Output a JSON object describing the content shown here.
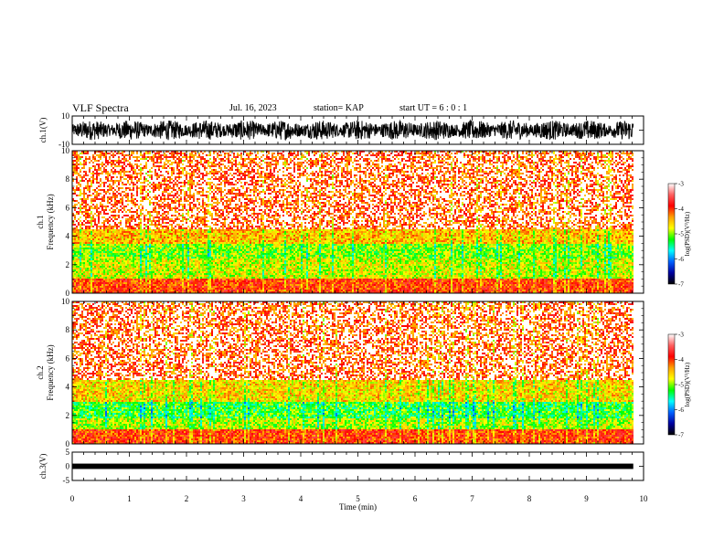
{
  "header": {
    "title": "VLF Spectra",
    "date": "Jul. 16, 2023",
    "station": "station= KAP",
    "start_ut": "start UT = 6 : 0 : 1"
  },
  "chart_data": [
    {
      "type": "line",
      "id": "ch1-waveform",
      "ylabel": "ch.1(V)",
      "ylim": [
        -10,
        10
      ],
      "ytick_labels": [
        "10",
        "-10"
      ],
      "xlim": [
        0,
        10
      ],
      "data_extent_x": [
        0,
        9.82
      ],
      "y_range_observed": [
        -7,
        7
      ]
    },
    {
      "type": "heatmap",
      "id": "ch1-spectrogram",
      "ylabel": "ch.1 Frequency (kHz)",
      "ylim": [
        0,
        10
      ],
      "yticks": [
        0,
        2,
        4,
        6,
        8,
        10
      ],
      "xlim": [
        0,
        10
      ],
      "data_extent_x": [
        0,
        9.82
      ],
      "colorbar": {
        "label": "log(PSD)(V²/Hz)",
        "range": [
          -7,
          -3
        ],
        "ticks": [
          -3,
          -4,
          -5,
          -6,
          -7
        ],
        "tick_labels": [
          "-3",
          "-4",
          "-5",
          "-6",
          "-7"
        ],
        "colors": [
          "#ffffff",
          "#ff6060",
          "#ff0000",
          "#ffa000",
          "#ffff00",
          "#00ff00",
          "#00ffff",
          "#0060ff",
          "#0000a0",
          "#000000"
        ]
      },
      "bands": [
        {
          "freq_khz": [
            4.5,
            10
          ],
          "level": -4.1
        },
        {
          "freq_khz": [
            3.5,
            4.5
          ],
          "level": -4.5
        },
        {
          "freq_khz": [
            2.5,
            3.5
          ],
          "level": -5.0
        },
        {
          "freq_khz": [
            1.0,
            2.5
          ],
          "level": -4.8
        },
        {
          "freq_khz": [
            0,
            1.0
          ],
          "level": -4.0
        }
      ]
    },
    {
      "type": "heatmap",
      "id": "ch2-spectrogram",
      "ylabel": "ch.2 Frequency (kHz)",
      "ylim": [
        0,
        10
      ],
      "yticks": [
        0,
        2,
        4,
        6,
        8,
        10
      ],
      "xlim": [
        0,
        10
      ],
      "data_extent_x": [
        0,
        9.82
      ],
      "colorbar": {
        "label": "log(PSD)(V²/Hz)",
        "range": [
          -7,
          -3
        ],
        "ticks": [
          -3,
          -4,
          -5,
          -6,
          -7
        ],
        "tick_labels": [
          "-3",
          "-4",
          "-5",
          "-6",
          "-7"
        ],
        "colors": [
          "#ffffff",
          "#ff6060",
          "#ff0000",
          "#ffa000",
          "#ffff00",
          "#00ff00",
          "#00ffff",
          "#0060ff",
          "#0000a0",
          "#000000"
        ]
      },
      "bands": [
        {
          "freq_khz": [
            4.5,
            10
          ],
          "level": -4.1
        },
        {
          "freq_khz": [
            3.0,
            4.5
          ],
          "level": -4.6
        },
        {
          "freq_khz": [
            1.8,
            3.0
          ],
          "level": -5.2
        },
        {
          "freq_khz": [
            1.0,
            1.8
          ],
          "level": -4.9
        },
        {
          "freq_khz": [
            0,
            1.0
          ],
          "level": -4.0
        }
      ]
    },
    {
      "type": "line",
      "id": "ch3-waveform",
      "ylabel": "ch.3(V)",
      "ylim": [
        -5,
        5
      ],
      "yticks": [
        5,
        0,
        -5
      ],
      "ytick_labels": [
        "5",
        "0",
        "-5"
      ],
      "xlim": [
        0,
        10
      ],
      "data_extent_x": [
        0,
        9.82
      ],
      "level": 0,
      "y_range_observed": [
        -0.3,
        0.3
      ]
    }
  ],
  "x_axis": {
    "label": "Time (min)",
    "ticks": [
      0,
      1,
      2,
      3,
      4,
      5,
      6,
      7,
      8,
      9,
      10
    ],
    "tick_labels": [
      "0",
      "1",
      "2",
      "3",
      "4",
      "5",
      "6",
      "7",
      "8",
      "9",
      "10"
    ]
  }
}
